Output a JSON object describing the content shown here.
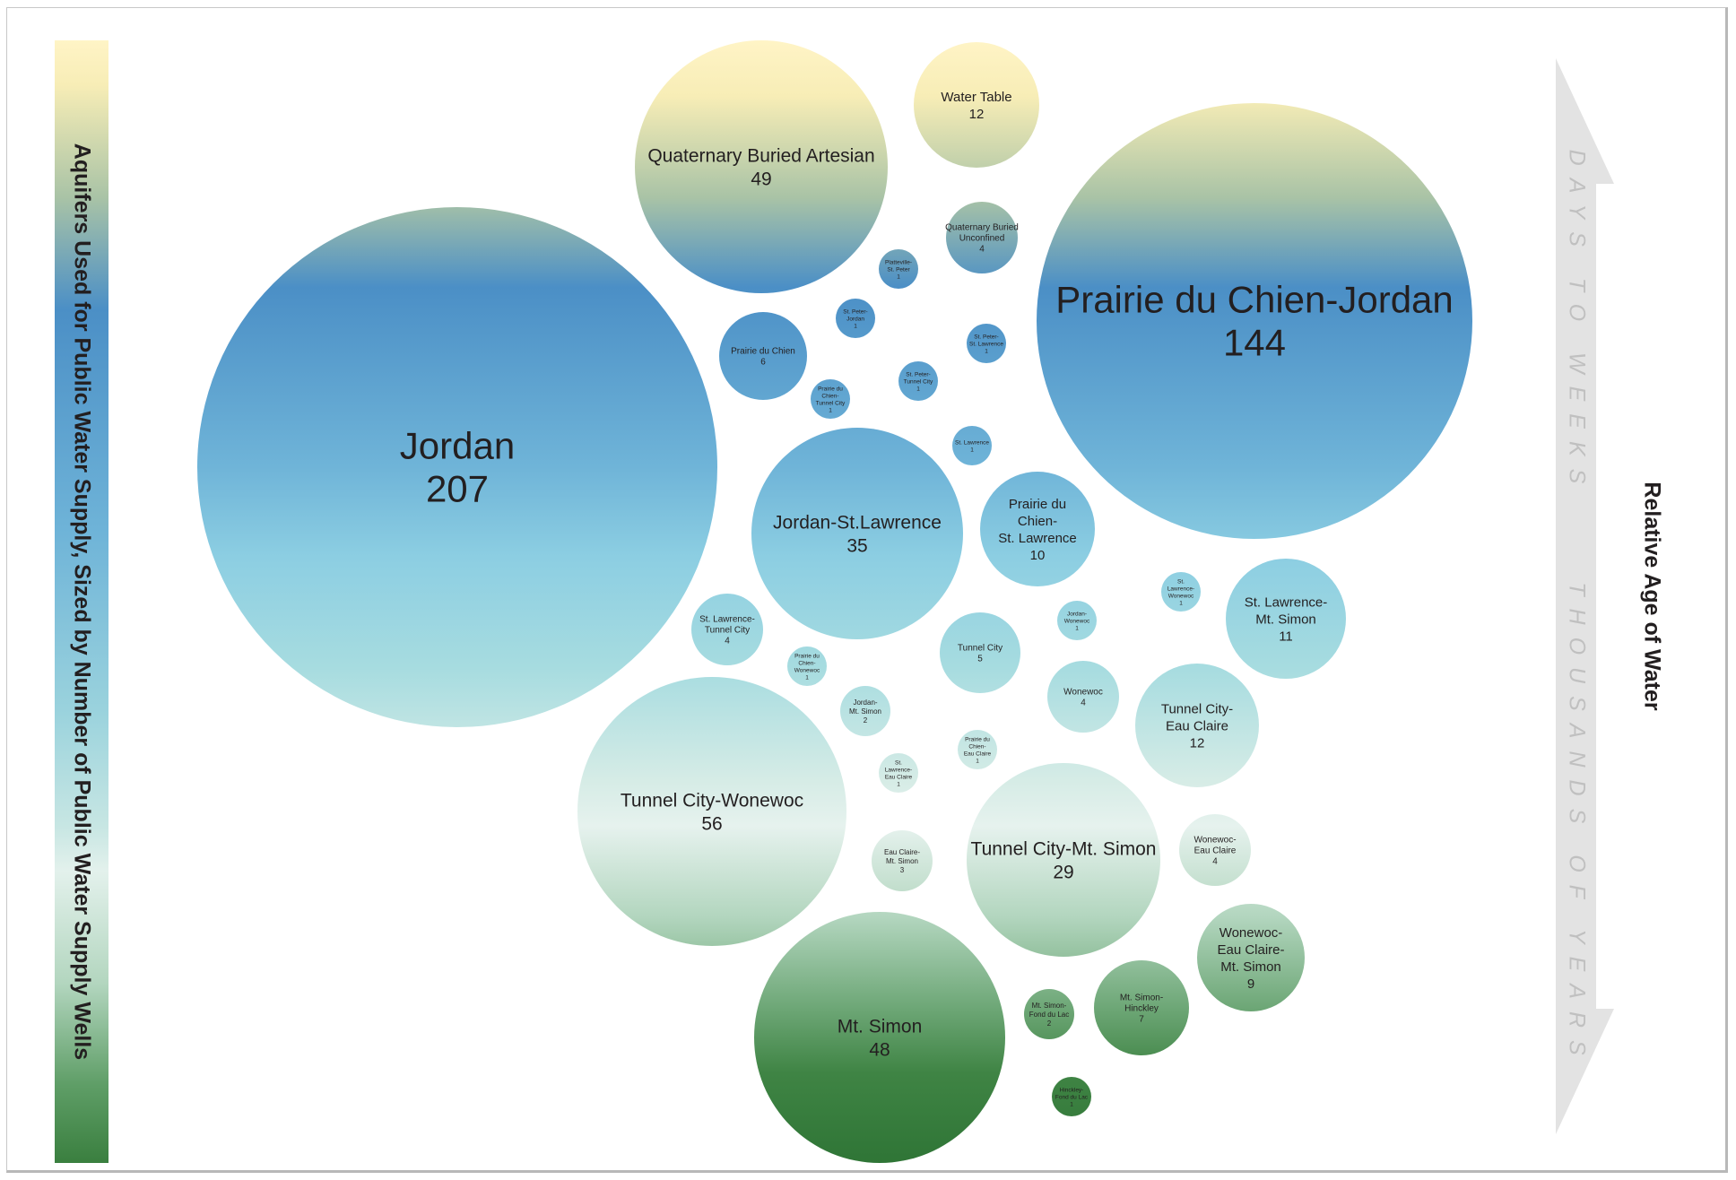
{
  "left_title": "Aquifers Used for Public Water Supply, Sized by Number of Public Water Supply Wells",
  "right_title": "Relative Age of Water",
  "age_arrow": {
    "top_label": "DAYS TO WEEKS",
    "bottom_label": "THOUSANDS OF YEARS"
  },
  "colors": {
    "young": "#fff4c6",
    "mid": "#4b8fc6",
    "light": "#e3f1ec",
    "old": "#3a7f3f",
    "arrow": "#e3e3e3"
  },
  "chart_data": {
    "type": "bubble",
    "series": [
      {
        "name": "Water Table",
        "label": "Water Table",
        "value": 12
      },
      {
        "name": "Quaternary Buried Artesian",
        "label": "Quaternary Buried Artesian",
        "value": 49
      },
      {
        "name": "Quaternary Buried Unconfined",
        "label": "Quaternary Buried Unconfined",
        "value": 4
      },
      {
        "name": "Prairie du Chien-Jordan",
        "label": "Prairie du Chien-Jordan",
        "value": 144
      },
      {
        "name": "Platteville-St. Peter",
        "label": "Platteville-St. Peter",
        "value": 1
      },
      {
        "name": "St. Peter-Jordan",
        "label": "St. Peter-Jordan",
        "value": 1
      },
      {
        "name": "St. Peter-St. Lawrence",
        "label": "St. Peter-St. Lawrence",
        "value": 1
      },
      {
        "name": "Prairie du Chien",
        "label": "Prairie du Chien",
        "value": 6
      },
      {
        "name": "St. Peter-Tunnel City",
        "label": "St. Peter-Tunnel City",
        "value": 1
      },
      {
        "name": "Prairie du Chien-Tunnel City",
        "label": "Prairie du Chien-Tunnel City",
        "value": 1
      },
      {
        "name": "Jordan",
        "label": "Jordan",
        "value": 207
      },
      {
        "name": "St. Lawrence",
        "label": "St. Lawrence",
        "value": 1
      },
      {
        "name": "Jordan-St.Lawrence",
        "label": "Jordan-St.Lawrence",
        "value": 35
      },
      {
        "name": "Prairie du Chien-St. Lawrence",
        "label": "Prairie du Chien-St. Lawrence",
        "value": 10
      },
      {
        "name": "St. Lawrence-Wonewoc",
        "label": "St. Lawrence-Wonewoc",
        "value": 1
      },
      {
        "name": "Jordan-Wonewoc",
        "label": "Jordan-Wonewoc",
        "value": 1
      },
      {
        "name": "St. Lawrence-Mt. Simon",
        "label": "St. Lawrence-Mt. Simon",
        "value": 11
      },
      {
        "name": "St. Lawrence-Tunnel City",
        "label": "St. Lawrence-Tunnel City",
        "value": 4
      },
      {
        "name": "Tunnel City",
        "label": "Tunnel City",
        "value": 5
      },
      {
        "name": "Prairie du Chien-Wonewoc",
        "label": "Prairie du Chien-Wonewoc",
        "value": 1
      },
      {
        "name": "Wonewoc",
        "label": "Wonewoc",
        "value": 4
      },
      {
        "name": "Tunnel City-Eau Claire",
        "label": "Tunnel City-Eau Claire",
        "value": 12
      },
      {
        "name": "Jordan-Mt. Simon",
        "label": "Jordan-Mt. Simon",
        "value": 2
      },
      {
        "name": "Prairie du Chien-Eau Claire",
        "label": "Prairie du Chien-Eau Claire",
        "value": 1
      },
      {
        "name": "St. Lawrence-Eau Claire",
        "label": "St. Lawrence-Eau Claire",
        "value": 1
      },
      {
        "name": "Tunnel City-Wonewoc",
        "label": "Tunnel City-Wonewoc",
        "value": 56
      },
      {
        "name": "Eau Claire-Mt. Simon",
        "label": "Eau Claire-Mt. Simon",
        "value": 3
      },
      {
        "name": "Tunnel City-Mt. Simon",
        "label": "Tunnel City-Mt. Simon",
        "value": 29
      },
      {
        "name": "Wonewoc-Eau Claire",
        "label": "Wonewoc-Eau Claire",
        "value": 4
      },
      {
        "name": "Wonewoc-Eau Claire-Mt. Simon",
        "label": "Wonewoc-Eau Claire-Mt. Simon",
        "value": 9
      },
      {
        "name": "Mt. Simon-Hinckley",
        "label": "Mt. Simon-Hinckley",
        "value": 7
      },
      {
        "name": "Mt. Simon-Fond du Lac",
        "label": "Mt. Simon-Fond du Lac",
        "value": 2
      },
      {
        "name": "Mt. Simon",
        "label": "Mt. Simon",
        "value": 48
      },
      {
        "name": "Hinckley-Fond du Lac",
        "label": "Hinckley-Fond du Lac",
        "value": 1
      }
    ]
  }
}
